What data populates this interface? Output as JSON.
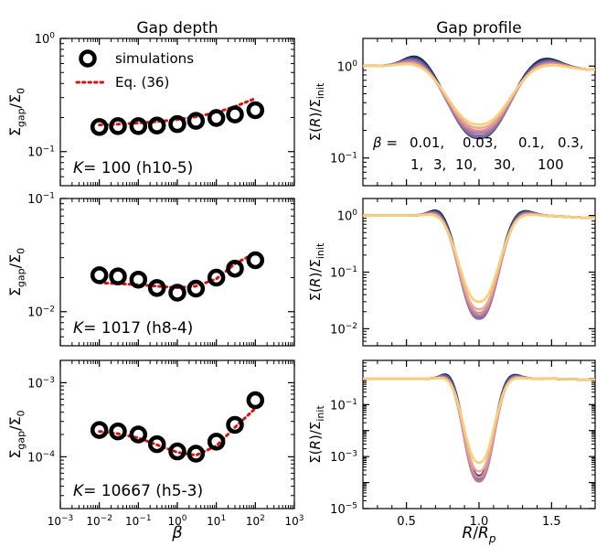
{
  "colors": {
    "marker": "#000000",
    "fit": "#dd1111",
    "beta_palette": [
      "#000000",
      "#0e1e4a",
      "#2a3a72",
      "#4b5089",
      "#6c6a9c",
      "#8c6f9e",
      "#b37aa0",
      "#d48d9a",
      "#eda98e",
      "#f9cf7a"
    ]
  },
  "chart_data": [
    {
      "type": "scatter",
      "panel": "left-top",
      "title": "Gap depth",
      "ylabel": "Σgap/Σ0",
      "xlabel": "",
      "xscale": "log",
      "yscale": "log",
      "xlim": [
        0.001,
        1000
      ],
      "ylim": [
        0.05,
        1
      ],
      "yticks": [
        {
          "v": 1,
          "label": "10^0"
        },
        {
          "v": 0.1,
          "label": "10^-1"
        }
      ],
      "annotation": "K = 100 (h10-5)",
      "legend": {
        "position": "top-left",
        "entries": [
          {
            "name": "simulations",
            "kind": "marker"
          },
          {
            "name": "Eq. (36)",
            "kind": "dotted-line"
          }
        ]
      },
      "series": [
        {
          "name": "simulations",
          "x": [
            0.01,
            0.03,
            0.1,
            0.3,
            1,
            3,
            10,
            30,
            100
          ],
          "y": [
            0.165,
            0.168,
            0.168,
            0.17,
            0.175,
            0.187,
            0.198,
            0.213,
            0.232
          ]
        },
        {
          "name": "Eq. (36)",
          "x": [
            0.01,
            0.03,
            0.1,
            0.3,
            1,
            3,
            10,
            30,
            100
          ],
          "y": [
            0.172,
            0.175,
            0.179,
            0.184,
            0.192,
            0.203,
            0.222,
            0.25,
            0.295
          ]
        }
      ]
    },
    {
      "type": "scatter",
      "panel": "left-middle",
      "ylabel": "Σgap/Σ0",
      "xscale": "log",
      "yscale": "log",
      "xlim": [
        0.001,
        1000
      ],
      "ylim": [
        0.005,
        0.1
      ],
      "yticks": [
        {
          "v": 0.1,
          "label": "10^-1"
        },
        {
          "v": 0.01,
          "label": "10^-2"
        }
      ],
      "annotation": "K = 1017 (h8-4)",
      "series": [
        {
          "name": "simulations",
          "x": [
            0.01,
            0.03,
            0.1,
            0.3,
            1,
            3,
            10,
            30,
            100
          ],
          "y": [
            0.021,
            0.0205,
            0.0192,
            0.0162,
            0.0147,
            0.016,
            0.02,
            0.024,
            0.0285
          ]
        },
        {
          "name": "Eq. (36)",
          "x": [
            0.01,
            0.03,
            0.1,
            0.3,
            1,
            3,
            10,
            30,
            100
          ],
          "y": [
            0.018,
            0.0177,
            0.0173,
            0.0168,
            0.0163,
            0.0168,
            0.0195,
            0.0265,
            0.033
          ]
        }
      ]
    },
    {
      "type": "scatter",
      "panel": "left-bottom",
      "ylabel": "Σgap/Σ0",
      "xlabel": "β",
      "xscale": "log",
      "yscale": "log",
      "xlim": [
        0.001,
        1000
      ],
      "ylim": [
        2e-05,
        0.002
      ],
      "yticks": [
        {
          "v": 0.001,
          "label": "10^-3"
        },
        {
          "v": 0.0001,
          "label": "10^-4"
        }
      ],
      "xticks": [
        {
          "v": 0.001,
          "label": "10^-3"
        },
        {
          "v": 0.01,
          "label": "10^-2"
        },
        {
          "v": 0.1,
          "label": "10^-1"
        },
        {
          "v": 1,
          "label": "10^0"
        },
        {
          "v": 10,
          "label": "10^1"
        },
        {
          "v": 100,
          "label": "10^2"
        },
        {
          "v": 1000,
          "label": "10^3"
        }
      ],
      "annotation": "K = 10667 (h5-3)",
      "series": [
        {
          "name": "simulations",
          "x": [
            0.01,
            0.03,
            0.1,
            0.3,
            1,
            3,
            10,
            30,
            100
          ],
          "y": [
            0.00023,
            0.00022,
            0.0002,
            0.000148,
            0.000118,
            0.00011,
            0.00016,
            0.00027,
            0.00058
          ]
        },
        {
          "name": "Eq. (36)",
          "x": [
            0.01,
            0.03,
            0.1,
            0.3,
            1,
            3,
            10,
            30,
            100
          ],
          "y": [
            0.00022,
            0.000205,
            0.00018,
            0.000145,
            0.000115,
            0.000105,
            0.00014,
            0.00025,
            0.00045
          ]
        }
      ]
    },
    {
      "type": "line",
      "panel": "right-top",
      "title": "Gap profile",
      "ylabel": "Σ(R)/Σinit",
      "yscale": "log",
      "xlim": [
        0.2,
        1.8
      ],
      "ylim": [
        0.05,
        2
      ],
      "yticks": [
        {
          "v": 1,
          "label": "10^0"
        },
        {
          "v": 0.1,
          "label": "10^-1"
        }
      ],
      "depth": 0.2,
      "width": 0.26,
      "bump": 0.1,
      "legend_label": "β =",
      "beta_labels": [
        "0.01,",
        "0.03,",
        "0.1,",
        "0.3,",
        "1,",
        "3,",
        "10,",
        "30,",
        "100"
      ],
      "series": [
        {
          "beta": 0.01,
          "min": 0.165
        },
        {
          "beta": 0.03,
          "min": 0.168
        },
        {
          "beta": 0.1,
          "min": 0.168
        },
        {
          "beta": 0.3,
          "min": 0.17
        },
        {
          "beta": 1,
          "min": 0.175
        },
        {
          "beta": 3,
          "min": 0.187
        },
        {
          "beta": 10,
          "min": 0.198
        },
        {
          "beta": 30,
          "min": 0.213
        },
        {
          "beta": 100,
          "min": 0.232
        }
      ]
    },
    {
      "type": "line",
      "panel": "right-middle",
      "ylabel": "Σ(R)/Σinit",
      "yscale": "log",
      "xlim": [
        0.2,
        1.8
      ],
      "ylim": [
        0.005,
        2
      ],
      "yticks": [
        {
          "v": 1,
          "label": "10^0"
        },
        {
          "v": 0.1,
          "label": "10^-1"
        },
        {
          "v": 0.01,
          "label": "10^-2"
        }
      ],
      "depth": 0.015,
      "width": 0.17,
      "bump": 0.1,
      "series": [
        {
          "beta": 0.01,
          "min": 0.0165
        },
        {
          "beta": 0.03,
          "min": 0.016
        },
        {
          "beta": 0.1,
          "min": 0.0158
        },
        {
          "beta": 0.3,
          "min": 0.0155
        },
        {
          "beta": 1,
          "min": 0.015
        },
        {
          "beta": 3,
          "min": 0.017
        },
        {
          "beta": 10,
          "min": 0.019
        },
        {
          "beta": 30,
          "min": 0.022
        },
        {
          "beta": 100,
          "min": 0.03
        }
      ]
    },
    {
      "type": "line",
      "panel": "right-bottom",
      "ylabel": "Σ(R)/Σinit",
      "xlabel": "R/Rp",
      "yscale": "log",
      "xlim": [
        0.2,
        1.8
      ],
      "ylim": [
        1e-05,
        5
      ],
      "yticks": [
        {
          "v": 0.1,
          "label": "10^-1"
        },
        {
          "v": 0.001,
          "label": "10^-3"
        },
        {
          "v": 1e-05,
          "label": "10^-5"
        }
      ],
      "xticks": [
        {
          "v": 0.5,
          "label": "0.5"
        },
        {
          "v": 1.0,
          "label": "1.0"
        },
        {
          "v": 1.5,
          "label": "1.5"
        }
      ],
      "depth": 0.0002,
      "width": 0.13,
      "bump": 0.2,
      "series": [
        {
          "beta": 0.01,
          "min": 0.00018
        },
        {
          "beta": 0.03,
          "min": 0.00017
        },
        {
          "beta": 0.1,
          "min": 0.00016
        },
        {
          "beta": 0.3,
          "min": 0.00015
        },
        {
          "beta": 1,
          "min": 0.00012
        },
        {
          "beta": 3,
          "min": 0.00011
        },
        {
          "beta": 10,
          "min": 0.00016
        },
        {
          "beta": 30,
          "min": 0.00027
        },
        {
          "beta": 100,
          "min": 0.00058
        }
      ]
    }
  ]
}
